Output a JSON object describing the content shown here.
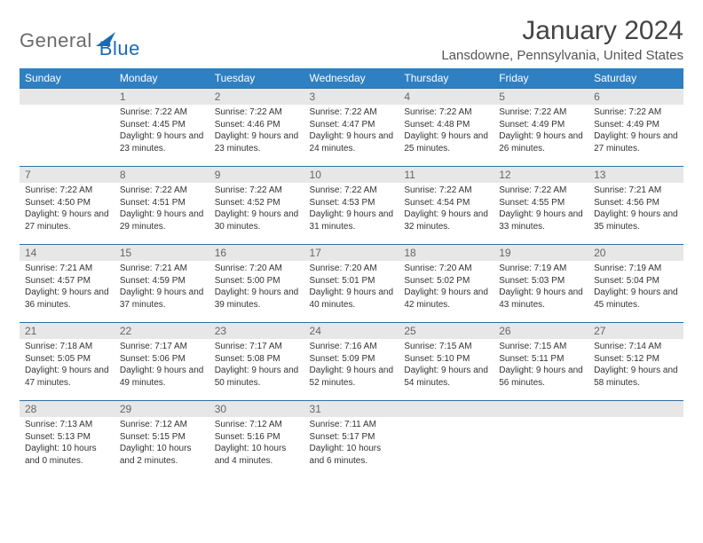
{
  "logo": {
    "general": "General",
    "blue": "Blue",
    "accent_color": "#1b6ab3"
  },
  "header": {
    "month_title": "January 2024",
    "location": "Lansdowne, Pennsylvania, United States"
  },
  "colors": {
    "header_bg": "#2f80c3",
    "header_text": "#ffffff",
    "daynum_bg": "#e7e7e7",
    "daynum_border": "#2f6fa3",
    "body_text": "#333333"
  },
  "weekdays": [
    "Sunday",
    "Monday",
    "Tuesday",
    "Wednesday",
    "Thursday",
    "Friday",
    "Saturday"
  ],
  "first_weekday_offset": 1,
  "days": [
    {
      "n": 1,
      "sunrise": "7:22 AM",
      "sunset": "4:45 PM",
      "daylight": "9 hours and 23 minutes."
    },
    {
      "n": 2,
      "sunrise": "7:22 AM",
      "sunset": "4:46 PM",
      "daylight": "9 hours and 23 minutes."
    },
    {
      "n": 3,
      "sunrise": "7:22 AM",
      "sunset": "4:47 PM",
      "daylight": "9 hours and 24 minutes."
    },
    {
      "n": 4,
      "sunrise": "7:22 AM",
      "sunset": "4:48 PM",
      "daylight": "9 hours and 25 minutes."
    },
    {
      "n": 5,
      "sunrise": "7:22 AM",
      "sunset": "4:49 PM",
      "daylight": "9 hours and 26 minutes."
    },
    {
      "n": 6,
      "sunrise": "7:22 AM",
      "sunset": "4:49 PM",
      "daylight": "9 hours and 27 minutes."
    },
    {
      "n": 7,
      "sunrise": "7:22 AM",
      "sunset": "4:50 PM",
      "daylight": "9 hours and 27 minutes."
    },
    {
      "n": 8,
      "sunrise": "7:22 AM",
      "sunset": "4:51 PM",
      "daylight": "9 hours and 29 minutes."
    },
    {
      "n": 9,
      "sunrise": "7:22 AM",
      "sunset": "4:52 PM",
      "daylight": "9 hours and 30 minutes."
    },
    {
      "n": 10,
      "sunrise": "7:22 AM",
      "sunset": "4:53 PM",
      "daylight": "9 hours and 31 minutes."
    },
    {
      "n": 11,
      "sunrise": "7:22 AM",
      "sunset": "4:54 PM",
      "daylight": "9 hours and 32 minutes."
    },
    {
      "n": 12,
      "sunrise": "7:22 AM",
      "sunset": "4:55 PM",
      "daylight": "9 hours and 33 minutes."
    },
    {
      "n": 13,
      "sunrise": "7:21 AM",
      "sunset": "4:56 PM",
      "daylight": "9 hours and 35 minutes."
    },
    {
      "n": 14,
      "sunrise": "7:21 AM",
      "sunset": "4:57 PM",
      "daylight": "9 hours and 36 minutes."
    },
    {
      "n": 15,
      "sunrise": "7:21 AM",
      "sunset": "4:59 PM",
      "daylight": "9 hours and 37 minutes."
    },
    {
      "n": 16,
      "sunrise": "7:20 AM",
      "sunset": "5:00 PM",
      "daylight": "9 hours and 39 minutes."
    },
    {
      "n": 17,
      "sunrise": "7:20 AM",
      "sunset": "5:01 PM",
      "daylight": "9 hours and 40 minutes."
    },
    {
      "n": 18,
      "sunrise": "7:20 AM",
      "sunset": "5:02 PM",
      "daylight": "9 hours and 42 minutes."
    },
    {
      "n": 19,
      "sunrise": "7:19 AM",
      "sunset": "5:03 PM",
      "daylight": "9 hours and 43 minutes."
    },
    {
      "n": 20,
      "sunrise": "7:19 AM",
      "sunset": "5:04 PM",
      "daylight": "9 hours and 45 minutes."
    },
    {
      "n": 21,
      "sunrise": "7:18 AM",
      "sunset": "5:05 PM",
      "daylight": "9 hours and 47 minutes."
    },
    {
      "n": 22,
      "sunrise": "7:17 AM",
      "sunset": "5:06 PM",
      "daylight": "9 hours and 49 minutes."
    },
    {
      "n": 23,
      "sunrise": "7:17 AM",
      "sunset": "5:08 PM",
      "daylight": "9 hours and 50 minutes."
    },
    {
      "n": 24,
      "sunrise": "7:16 AM",
      "sunset": "5:09 PM",
      "daylight": "9 hours and 52 minutes."
    },
    {
      "n": 25,
      "sunrise": "7:15 AM",
      "sunset": "5:10 PM",
      "daylight": "9 hours and 54 minutes."
    },
    {
      "n": 26,
      "sunrise": "7:15 AM",
      "sunset": "5:11 PM",
      "daylight": "9 hours and 56 minutes."
    },
    {
      "n": 27,
      "sunrise": "7:14 AM",
      "sunset": "5:12 PM",
      "daylight": "9 hours and 58 minutes."
    },
    {
      "n": 28,
      "sunrise": "7:13 AM",
      "sunset": "5:13 PM",
      "daylight": "10 hours and 0 minutes."
    },
    {
      "n": 29,
      "sunrise": "7:12 AM",
      "sunset": "5:15 PM",
      "daylight": "10 hours and 2 minutes."
    },
    {
      "n": 30,
      "sunrise": "7:12 AM",
      "sunset": "5:16 PM",
      "daylight": "10 hours and 4 minutes."
    },
    {
      "n": 31,
      "sunrise": "7:11 AM",
      "sunset": "5:17 PM",
      "daylight": "10 hours and 6 minutes."
    }
  ],
  "labels": {
    "sunrise": "Sunrise:",
    "sunset": "Sunset:",
    "daylight": "Daylight:"
  }
}
